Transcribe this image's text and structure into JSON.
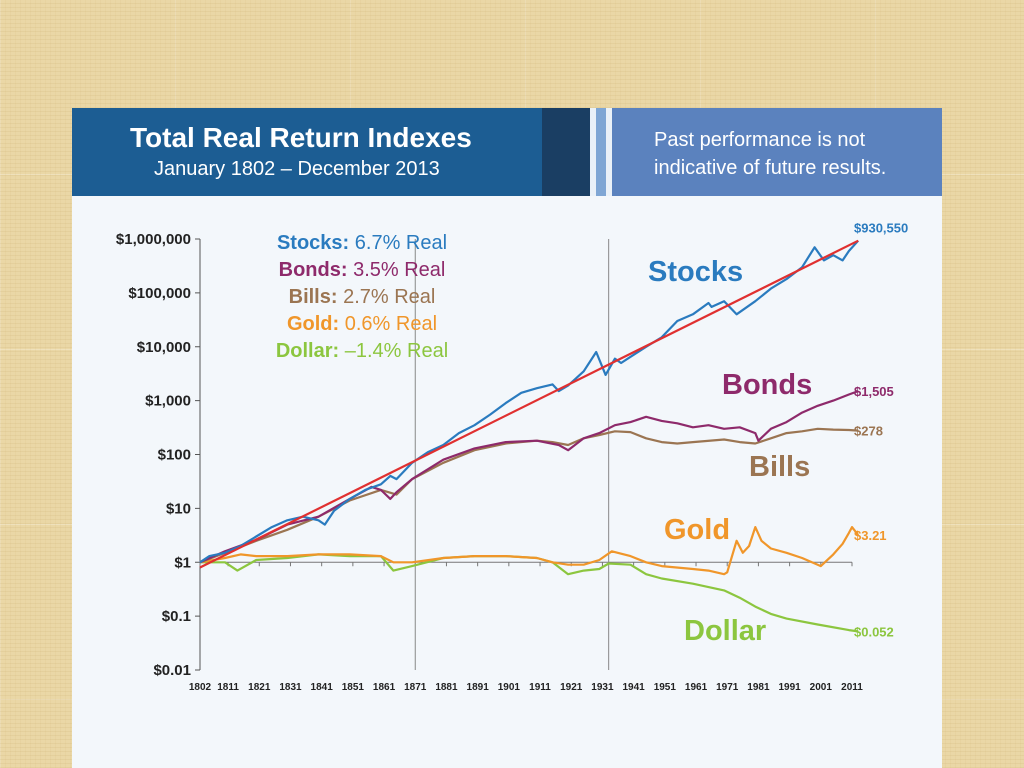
{
  "header": {
    "title": "Total Real Return Indexes",
    "subtitle": "January 1802 – December 2013",
    "disclaimer": "Past performance is not indicative of future results."
  },
  "chart_data": {
    "type": "line",
    "y_scale": "log",
    "ylim": [
      0.01,
      1000000
    ],
    "xlim": [
      1802,
      2013
    ],
    "grid": false,
    "y_ticks": [
      {
        "value": 1000000,
        "label": "$1,000,000"
      },
      {
        "value": 100000,
        "label": "$100,000"
      },
      {
        "value": 10000,
        "label": "$10,000"
      },
      {
        "value": 1000,
        "label": "$1,000"
      },
      {
        "value": 100,
        "label": "$100"
      },
      {
        "value": 10,
        "label": "$10"
      },
      {
        "value": 1,
        "label": "$1"
      },
      {
        "value": 0.1,
        "label": "$0.1"
      },
      {
        "value": 0.01,
        "label": "$0.01"
      }
    ],
    "x_ticks": [
      1802,
      1811,
      1821,
      1831,
      1841,
      1851,
      1861,
      1871,
      1881,
      1891,
      1901,
      1911,
      1921,
      1931,
      1941,
      1951,
      1961,
      1971,
      1981,
      1991,
      2001,
      2011
    ],
    "vertical_markers": [
      1871,
      1933
    ],
    "legend": [
      {
        "name": "Stocks:",
        "rate": "6.7% Real",
        "color": "#2a7bbf"
      },
      {
        "name": "Bonds:",
        "rate": "3.5% Real",
        "color": "#8e2a6b"
      },
      {
        "name": "Bills:",
        "rate": "2.7% Real",
        "color": "#9b7552"
      },
      {
        "name": "Gold:",
        "rate": "0.6% Real",
        "color": "#f0962a"
      },
      {
        "name": "Dollar:",
        "rate": "–1.4% Real",
        "color": "#8cc63f"
      }
    ],
    "trend": {
      "x": [
        1802,
        2013
      ],
      "y": [
        0.8,
        930550
      ],
      "color": "#e03030"
    },
    "series": [
      {
        "name": "Stocks",
        "color": "#2a7bbf",
        "end_label": "$930,550",
        "x": [
          1802,
          1805,
          1810,
          1815,
          1820,
          1825,
          1830,
          1835,
          1840,
          1842,
          1845,
          1850,
          1855,
          1860,
          1863,
          1865,
          1870,
          1875,
          1880,
          1885,
          1890,
          1895,
          1900,
          1905,
          1910,
          1915,
          1917,
          1920,
          1925,
          1929,
          1932,
          1935,
          1937,
          1940,
          1945,
          1950,
          1955,
          1960,
          1965,
          1966,
          1970,
          1974,
          1980,
          1985,
          1990,
          1995,
          1999,
          2002,
          2005,
          2008,
          2010,
          2013
        ],
        "y": [
          1,
          1.3,
          1.5,
          2,
          3,
          4.5,
          6,
          7,
          6,
          5,
          9,
          15,
          22,
          28,
          40,
          35,
          70,
          110,
          150,
          250,
          350,
          550,
          900,
          1400,
          1700,
          2000,
          1500,
          1900,
          3500,
          8000,
          3000,
          6000,
          5000,
          6500,
          10000,
          15000,
          30000,
          40000,
          65000,
          55000,
          70000,
          40000,
          70000,
          120000,
          180000,
          300000,
          700000,
          400000,
          500000,
          400000,
          600000,
          930550
        ]
      },
      {
        "name": "Bonds",
        "color": "#8e2a6b",
        "end_label": "$1,505",
        "x": [
          1802,
          1810,
          1820,
          1830,
          1840,
          1850,
          1857,
          1860,
          1863,
          1865,
          1870,
          1880,
          1890,
          1900,
          1910,
          1917,
          1920,
          1925,
          1930,
          1935,
          1940,
          1945,
          1950,
          1955,
          1960,
          1965,
          1970,
          1975,
          1980,
          1981,
          1985,
          1990,
          1995,
          2000,
          2005,
          2010,
          2013
        ],
        "y": [
          1,
          1.6,
          2.6,
          5,
          7,
          15,
          25,
          22,
          15,
          20,
          35,
          80,
          130,
          170,
          180,
          150,
          120,
          200,
          250,
          350,
          400,
          500,
          420,
          380,
          320,
          350,
          300,
          320,
          250,
          180,
          300,
          400,
          600,
          800,
          1000,
          1300,
          1505
        ]
      },
      {
        "name": "Bills",
        "color": "#9b7552",
        "end_label": "$278",
        "x": [
          1802,
          1810,
          1820,
          1830,
          1840,
          1850,
          1860,
          1865,
          1870,
          1880,
          1890,
          1900,
          1910,
          1915,
          1920,
          1925,
          1930,
          1935,
          1940,
          1945,
          1950,
          1955,
          1960,
          1970,
          1975,
          1980,
          1985,
          1990,
          1995,
          2000,
          2005,
          2010,
          2013
        ],
        "y": [
          1,
          1.5,
          2.5,
          4,
          7,
          14,
          22,
          18,
          35,
          70,
          120,
          160,
          180,
          170,
          150,
          200,
          230,
          270,
          260,
          200,
          170,
          160,
          170,
          190,
          170,
          160,
          200,
          250,
          270,
          300,
          290,
          285,
          278
        ]
      },
      {
        "name": "Gold",
        "color": "#f0962a",
        "end_label": "$3.21",
        "x": [
          1802,
          1810,
          1815,
          1820,
          1830,
          1840,
          1850,
          1860,
          1864,
          1870,
          1880,
          1890,
          1900,
          1910,
          1915,
          1920,
          1925,
          1930,
          1934,
          1940,
          1945,
          1950,
          1960,
          1965,
          1970,
          1971,
          1974,
          1976,
          1978,
          1980,
          1982,
          1985,
          1990,
          1995,
          2000,
          2001,
          2005,
          2008,
          2010,
          2011,
          2013
        ],
        "y": [
          1,
          1.2,
          1.4,
          1.3,
          1.3,
          1.4,
          1.4,
          1.3,
          1.0,
          1.0,
          1.2,
          1.3,
          1.3,
          1.2,
          1.0,
          0.9,
          0.9,
          1.1,
          1.6,
          1.3,
          1.0,
          0.85,
          0.75,
          0.7,
          0.6,
          0.65,
          2.5,
          1.5,
          2.0,
          4.5,
          2.5,
          1.8,
          1.5,
          1.2,
          0.9,
          0.85,
          1.4,
          2.2,
          3.5,
          4.5,
          3.21
        ]
      },
      {
        "name": "Dollar",
        "color": "#8cc63f",
        "end_label": "$0.052",
        "x": [
          1802,
          1810,
          1814,
          1820,
          1830,
          1840,
          1850,
          1860,
          1864,
          1870,
          1880,
          1890,
          1900,
          1910,
          1915,
          1920,
          1925,
          1930,
          1933,
          1940,
          1945,
          1950,
          1960,
          1970,
          1975,
          1980,
          1985,
          1990,
          2000,
          2010,
          2013
        ],
        "y": [
          1,
          1.0,
          0.7,
          1.1,
          1.2,
          1.4,
          1.3,
          1.3,
          0.7,
          0.85,
          1.2,
          1.3,
          1.3,
          1.2,
          1.0,
          0.6,
          0.7,
          0.75,
          0.95,
          0.9,
          0.6,
          0.5,
          0.4,
          0.3,
          0.22,
          0.15,
          0.11,
          0.09,
          0.07,
          0.055,
          0.052
        ]
      }
    ],
    "annotations": [
      {
        "text": "Stocks",
        "color": "#2a7bbf"
      },
      {
        "text": "Bonds",
        "color": "#8e2a6b"
      },
      {
        "text": "Bills",
        "color": "#9b7552"
      },
      {
        "text": "Gold",
        "color": "#f0962a"
      },
      {
        "text": "Dollar",
        "color": "#8cc63f"
      }
    ]
  }
}
